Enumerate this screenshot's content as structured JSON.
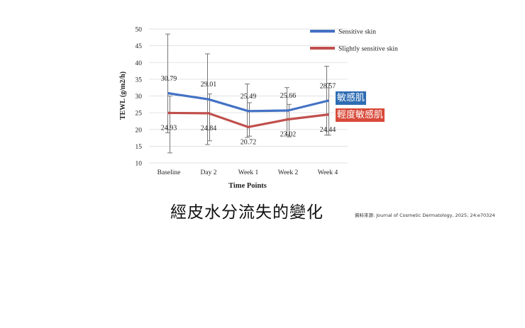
{
  "chart_data": {
    "type": "line",
    "categories": [
      "Baseline",
      "Day 2",
      "Week 1",
      "Week 2",
      "Week 4"
    ],
    "ylabel": "TEWL (g/m2/h)",
    "xlabel": "Time Points",
    "ylim": [
      10,
      50
    ],
    "yticks": [
      "10",
      "15",
      "20",
      "25",
      "30",
      "35",
      "40",
      "45",
      "50"
    ],
    "legend_position": "top-right",
    "series": [
      {
        "name": "Sensitive skin",
        "color": "#4472C4",
        "values": [
          30.79,
          29.01,
          25.49,
          25.66,
          28.57
        ],
        "labels": [
          "30.79",
          "29.01",
          "25.49",
          "25.66",
          "28.57"
        ],
        "error_low": [
          19.0,
          15.5,
          17.6,
          18.4,
          18.3
        ],
        "error_high": [
          48.5,
          42.6,
          33.6,
          32.5,
          38.9
        ]
      },
      {
        "name": "Slightly sensitive skin",
        "color": "#C0504D",
        "values": [
          24.93,
          24.84,
          20.72,
          23.02,
          24.44
        ],
        "labels": [
          "24.93",
          "24.84",
          "20.72",
          "23.02",
          "24.44"
        ],
        "error_low": [
          13.0,
          16.6,
          18.0,
          17.8,
          18.3
        ],
        "error_high": [
          30.0,
          30.6,
          28.0,
          27.5,
          33.8
        ]
      }
    ]
  },
  "tags": {
    "sensitive": "敏感肌",
    "slightly": "輕度敏感肌",
    "sensitive_color": "#2E6DB4",
    "slightly_color": "#D84A3A"
  },
  "caption": "經皮水分流失的變化",
  "source": "資料來源: Journal of Cosmetic Dermatology, 2025; 24:e70324"
}
